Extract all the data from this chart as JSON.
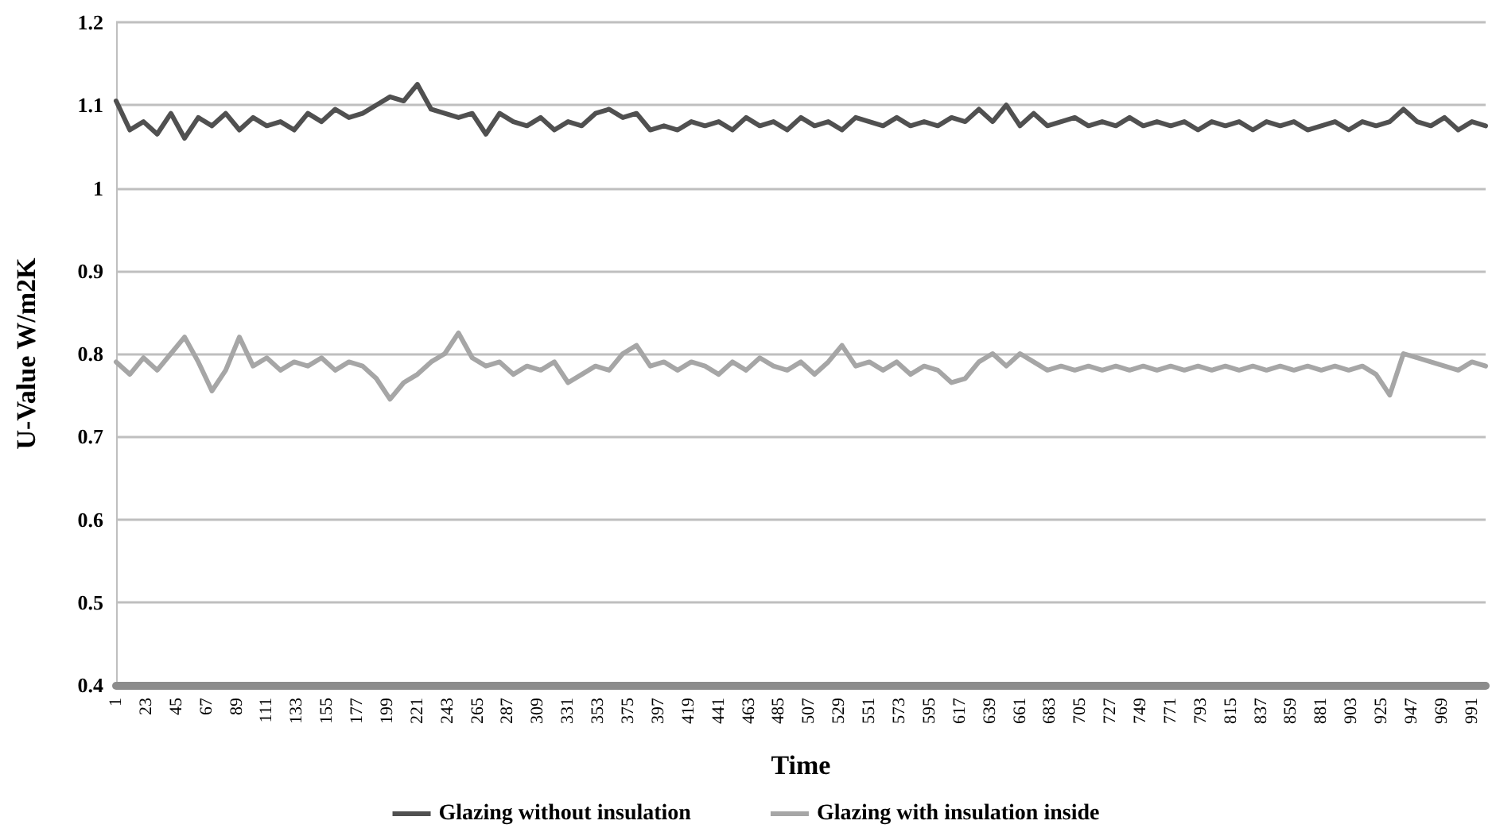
{
  "chart_data": {
    "type": "line",
    "xlabel": "Time",
    "ylabel": "U-Value W/m2K",
    "x": [
      1,
      11,
      21,
      31,
      41,
      51,
      61,
      71,
      81,
      91,
      101,
      111,
      121,
      131,
      141,
      151,
      161,
      171,
      181,
      191,
      201,
      211,
      221,
      231,
      241,
      251,
      261,
      271,
      281,
      291,
      301,
      311,
      321,
      331,
      341,
      351,
      361,
      371,
      381,
      391,
      401,
      411,
      421,
      431,
      441,
      451,
      461,
      471,
      481,
      491,
      501,
      511,
      521,
      531,
      541,
      551,
      561,
      571,
      581,
      591,
      601,
      611,
      621,
      631,
      641,
      651,
      661,
      671,
      681,
      691,
      701,
      711,
      721,
      731,
      741,
      751,
      761,
      771,
      781,
      791,
      801,
      811,
      821,
      831,
      841,
      851,
      861,
      871,
      881,
      891,
      901,
      911,
      921,
      931,
      941,
      951,
      961,
      971,
      981,
      991,
      1001
    ],
    "series": [
      {
        "name": "Glazing without insulation",
        "color": "#505050",
        "values": [
          1.105,
          1.07,
          1.08,
          1.065,
          1.09,
          1.06,
          1.085,
          1.075,
          1.09,
          1.07,
          1.085,
          1.075,
          1.08,
          1.07,
          1.09,
          1.08,
          1.095,
          1.085,
          1.09,
          1.1,
          1.11,
          1.105,
          1.125,
          1.095,
          1.09,
          1.085,
          1.09,
          1.065,
          1.09,
          1.08,
          1.075,
          1.085,
          1.07,
          1.08,
          1.075,
          1.09,
          1.095,
          1.085,
          1.09,
          1.07,
          1.075,
          1.07,
          1.08,
          1.075,
          1.08,
          1.07,
          1.085,
          1.075,
          1.08,
          1.07,
          1.085,
          1.075,
          1.08,
          1.07,
          1.085,
          1.08,
          1.075,
          1.085,
          1.075,
          1.08,
          1.075,
          1.085,
          1.08,
          1.095,
          1.08,
          1.1,
          1.075,
          1.09,
          1.075,
          1.08,
          1.085,
          1.075,
          1.08,
          1.075,
          1.085,
          1.075,
          1.08,
          1.075,
          1.08,
          1.07,
          1.08,
          1.075,
          1.08,
          1.07,
          1.08,
          1.075,
          1.08,
          1.07,
          1.075,
          1.08,
          1.07,
          1.08,
          1.075,
          1.08,
          1.095,
          1.08,
          1.075,
          1.085,
          1.07,
          1.08,
          1.075
        ]
      },
      {
        "name": "Glazing with insulation inside",
        "color": "#a6a6a6",
        "values": [
          0.79,
          0.775,
          0.795,
          0.78,
          0.8,
          0.82,
          0.79,
          0.755,
          0.78,
          0.82,
          0.785,
          0.795,
          0.78,
          0.79,
          0.785,
          0.795,
          0.78,
          0.79,
          0.785,
          0.77,
          0.745,
          0.765,
          0.775,
          0.79,
          0.8,
          0.825,
          0.795,
          0.785,
          0.79,
          0.775,
          0.785,
          0.78,
          0.79,
          0.765,
          0.775,
          0.785,
          0.78,
          0.8,
          0.81,
          0.785,
          0.79,
          0.78,
          0.79,
          0.785,
          0.775,
          0.79,
          0.78,
          0.795,
          0.785,
          0.78,
          0.79,
          0.775,
          0.79,
          0.81,
          0.785,
          0.79,
          0.78,
          0.79,
          0.775,
          0.785,
          0.78,
          0.765,
          0.77,
          0.79,
          0.8,
          0.785,
          0.8,
          0.79,
          0.78,
          0.785,
          0.78,
          0.785,
          0.78,
          0.785,
          0.78,
          0.785,
          0.78,
          0.785,
          0.78,
          0.785,
          0.78,
          0.785,
          0.78,
          0.785,
          0.78,
          0.785,
          0.78,
          0.785,
          0.78,
          0.785,
          0.78,
          0.785,
          0.775,
          0.75,
          0.8,
          0.795,
          0.79,
          0.785,
          0.78,
          0.79,
          0.785
        ]
      }
    ],
    "xlim": [
      1,
      1001
    ],
    "xticks": [
      1,
      23,
      45,
      67,
      89,
      111,
      133,
      155,
      177,
      199,
      221,
      243,
      265,
      287,
      309,
      331,
      353,
      375,
      397,
      419,
      441,
      463,
      485,
      507,
      529,
      551,
      573,
      595,
      617,
      639,
      661,
      683,
      705,
      727,
      749,
      771,
      793,
      815,
      837,
      859,
      881,
      903,
      925,
      947,
      969,
      991
    ],
    "ylim": [
      0.4,
      1.2
    ],
    "yticks": [
      0.4,
      0.5,
      0.6,
      0.7,
      0.8,
      0.9,
      1,
      1.1,
      1.2
    ],
    "grid": "y",
    "legend": "bottom",
    "marker": "none",
    "line_style": "solid"
  }
}
